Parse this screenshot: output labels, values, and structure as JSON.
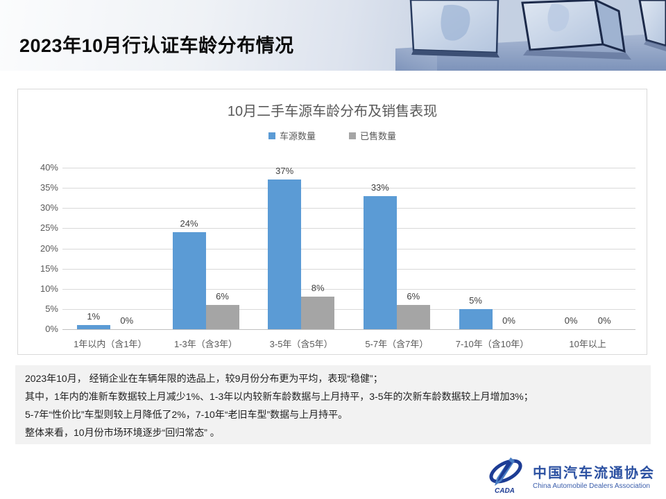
{
  "header": {
    "title": "2023年10月行认证车龄分布情况"
  },
  "chart_data": {
    "type": "bar",
    "title": "10月二手车源车龄分布及销售表现",
    "categories": [
      "1年以内（含1年）",
      "1-3年（含3年）",
      "3-5年（含5年）",
      "5-7年（含7年）",
      "7-10年（含10年）",
      "10年以上"
    ],
    "series": [
      {
        "name": "车源数量",
        "color": "#5b9bd5",
        "values": [
          1,
          24,
          37,
          33,
          5,
          0
        ]
      },
      {
        "name": "已售数量",
        "color": "#a5a5a5",
        "values": [
          0,
          6,
          8,
          6,
          0,
          0
        ]
      }
    ],
    "xlabel": "",
    "ylabel": "",
    "ylim": [
      0,
      40
    ],
    "ytick_step": 5,
    "ytick_suffix": "%",
    "data_label_suffix": "%",
    "grid": true,
    "legend_position": "top"
  },
  "summary": {
    "lines": [
      "2023年10月， 经销企业在车辆年限的选品上，较9月份分布更为平均，表现“稳健”；",
      "其中，1年内的准新车数据较上月减少1%、1-3年以内较新车龄数据与上月持平，3-5年的次新车龄数据较上月增加3%；",
      "5-7年“性价比”车型则较上月降低了2%，7-10年“老旧车型”数据与上月持平。",
      "整体来看，10月份市场环境逐步“回归常态” 。"
    ]
  },
  "footer": {
    "logo": {
      "mark_text": "CADA",
      "name_cn": "中国汽车流通协会",
      "name_en": "China Automobile Dealers Association"
    }
  }
}
